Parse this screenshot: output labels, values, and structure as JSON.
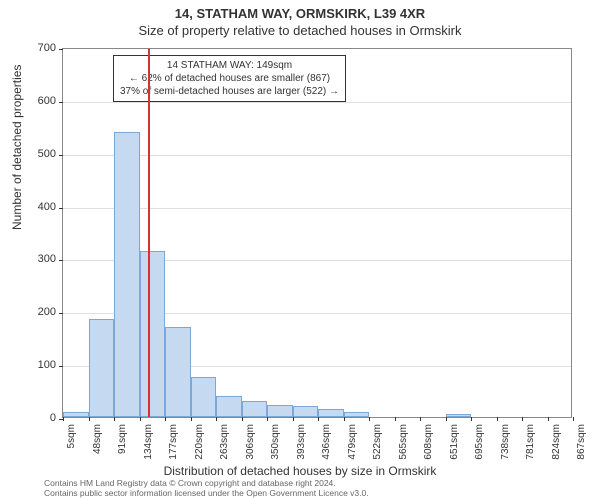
{
  "header": {
    "address": "14, STATHAM WAY, ORMSKIRK, L39 4XR",
    "subtitle": "Size of property relative to detached houses in Ormskirk"
  },
  "info_box": {
    "line1": "14 STATHAM WAY: 149sqm",
    "line2": "← 62% of detached houses are smaller (867)",
    "line3": "37% of semi-detached houses are larger (522) →"
  },
  "chart": {
    "type": "histogram",
    "ylabel": "Number of detached properties",
    "xlabel": "Distribution of detached houses by size in Ormskirk",
    "ylim": [
      0,
      700
    ],
    "ytick_step": 100,
    "yticks": [
      0,
      100,
      200,
      300,
      400,
      500,
      600,
      700
    ],
    "xticks": [
      "5sqm",
      "48sqm",
      "91sqm",
      "134sqm",
      "177sqm",
      "220sqm",
      "263sqm",
      "306sqm",
      "350sqm",
      "393sqm",
      "436sqm",
      "479sqm",
      "522sqm",
      "565sqm",
      "608sqm",
      "651sqm",
      "695sqm",
      "738sqm",
      "781sqm",
      "824sqm",
      "867sqm"
    ],
    "values": [
      10,
      185,
      540,
      315,
      170,
      75,
      40,
      30,
      22,
      20,
      15,
      10,
      0,
      0,
      0,
      5,
      0,
      0,
      0,
      0
    ],
    "bar_color": "#c5d9f0",
    "bar_border": "#7da7d9",
    "grid_color": "#e0e0e0",
    "reference_line_color": "#d93030",
    "reference_x": 149,
    "xmin": 5,
    "xmax": 867,
    "title_fontsize": 13,
    "label_fontsize": 12,
    "tick_fontsize": 11
  },
  "footer": {
    "line1": "Contains HM Land Registry data © Crown copyright and database right 2024.",
    "line2": "Contains public sector information licensed under the Open Government Licence v3.0."
  }
}
